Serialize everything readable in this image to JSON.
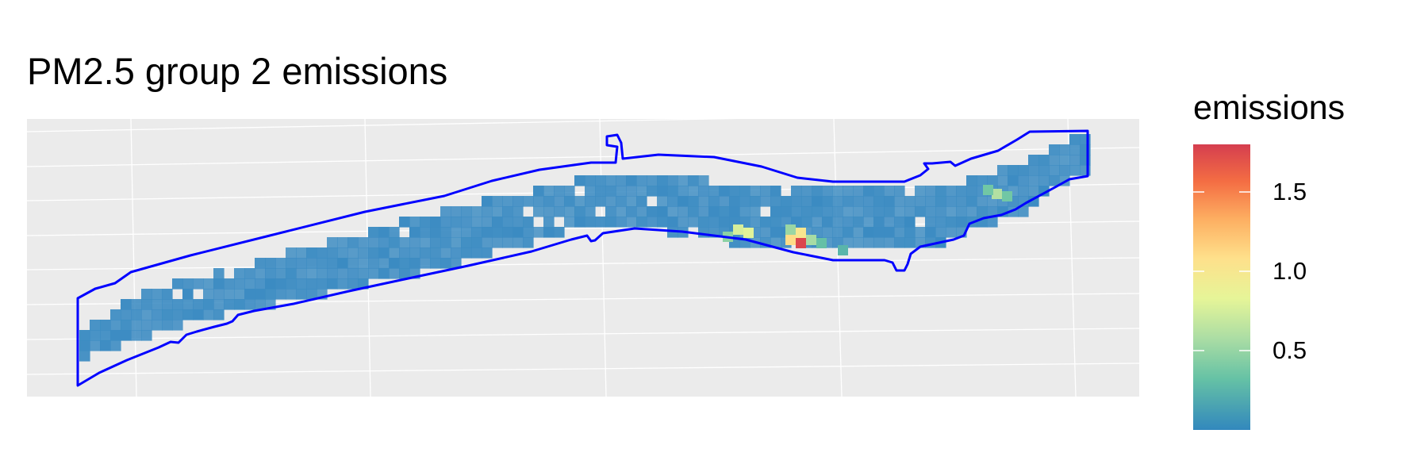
{
  "title": "PM2.5 group 2 emissions",
  "legend": {
    "title": "emissions",
    "min": 0,
    "max": 1.8,
    "ticks": [
      {
        "value": 0.5,
        "label": "0.5"
      },
      {
        "value": 1.0,
        "label": "1.0"
      },
      {
        "value": 1.5,
        "label": "1.5"
      }
    ],
    "colors": [
      "#3288bd",
      "#66c2a5",
      "#abdda4",
      "#e6f598",
      "#fee08b",
      "#fdae61",
      "#f46d43",
      "#d53e4f"
    ]
  },
  "colors": {
    "panel_background": "#ebebeb",
    "gridline": "#ffffff",
    "boundary": "#0000ff",
    "base_cell": "#3b8bc2"
  },
  "chart_data": {
    "type": "heatmap",
    "title": "PM2.5 group 2 emissions",
    "fill_variable": "emissions",
    "hotspots": [
      {
        "value": 1.75
      },
      {
        "value": 1.05
      },
      {
        "value": 0.95
      },
      {
        "value": 0.75
      },
      {
        "value": 0.7
      },
      {
        "value": 0.55
      },
      {
        "value": 0.5
      },
      {
        "value": 0.45
      },
      {
        "value": 0.4
      },
      {
        "value": 0.3
      },
      {
        "value": 0.3
      },
      {
        "value": 0.25
      },
      {
        "value": 0.2
      }
    ]
  }
}
